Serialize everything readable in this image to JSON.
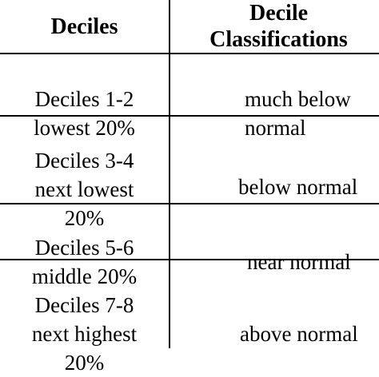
{
  "table": {
    "headers": [
      "Deciles",
      "Decile\nClassifications"
    ],
    "rows": [
      {
        "decile": "Deciles 1-2\n  lowest 20%",
        "classification": "much below\nnormal"
      },
      {
        "decile": "Deciles 3-4\n  next lowest\n20%",
        "classification": "below normal"
      },
      {
        "decile": "Deciles 5-6\n  middle 20%",
        "classification": "near normal"
      },
      {
        "decile": "Deciles 7-8\n  next highest\n20%",
        "classification": "above normal"
      }
    ]
  }
}
